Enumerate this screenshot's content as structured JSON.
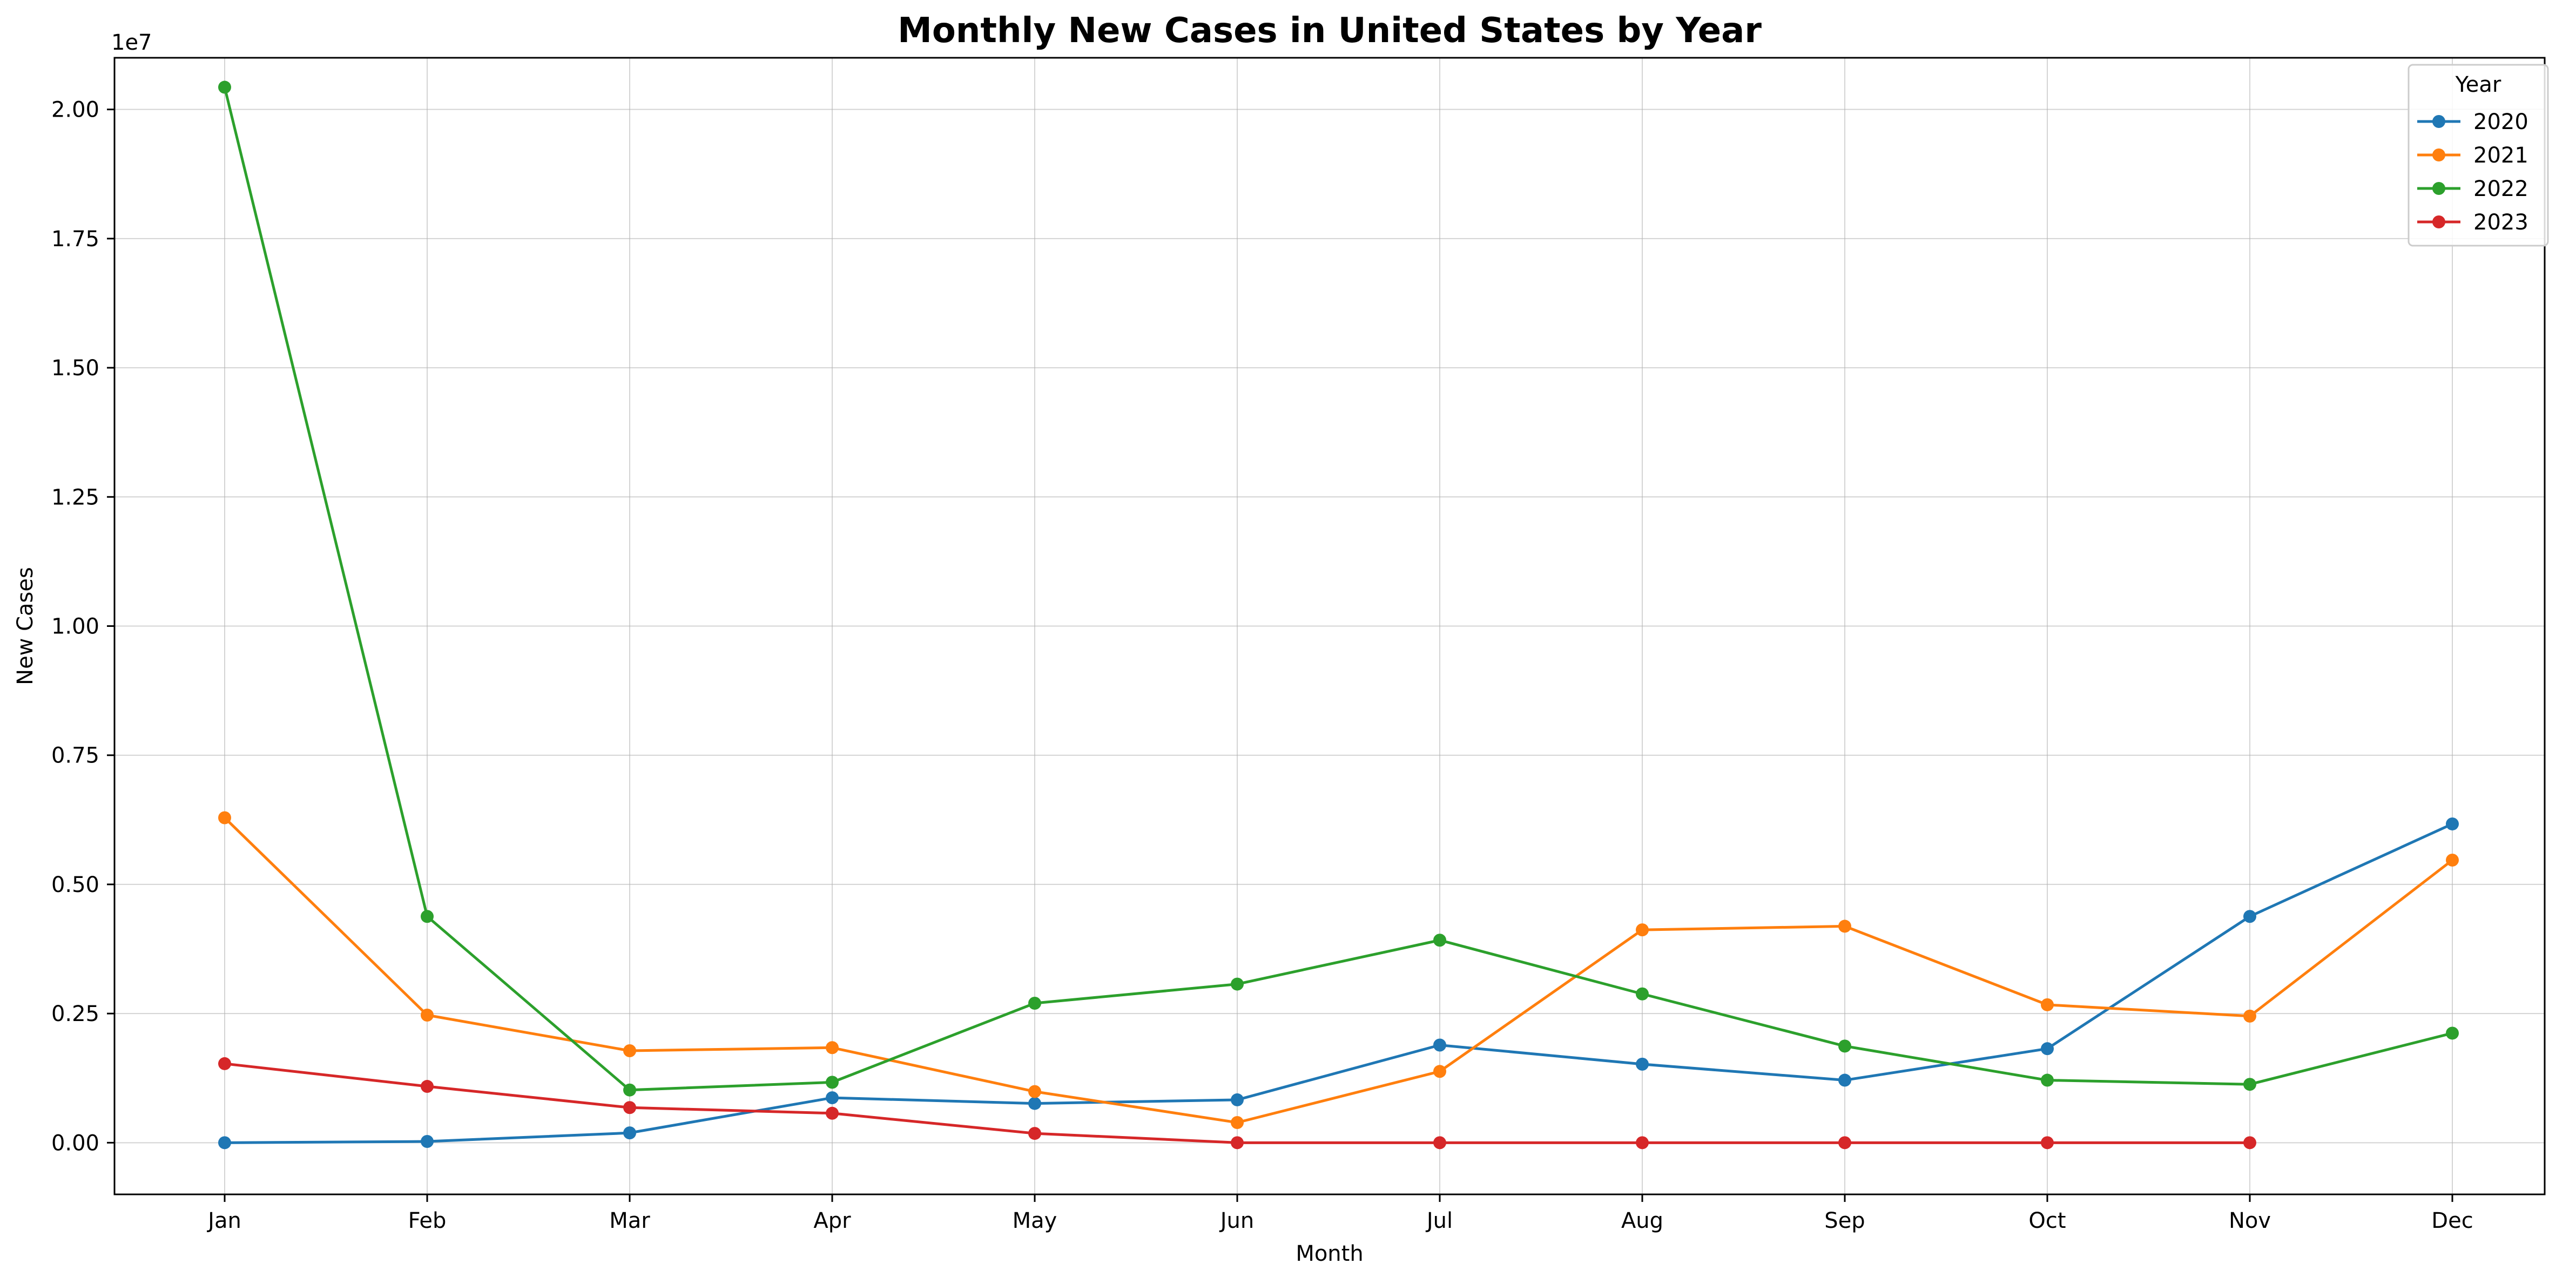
{
  "chart_data": {
    "type": "line",
    "title": "Monthly New Cases in United States by Year",
    "xlabel": "Month",
    "ylabel": "New Cases",
    "y_multiplier_label": "1e7",
    "categories": [
      "Jan",
      "Feb",
      "Mar",
      "Apr",
      "May",
      "Jun",
      "Jul",
      "Aug",
      "Sep",
      "Oct",
      "Nov",
      "Dec"
    ],
    "y_ticks": [
      "0.00",
      "0.25",
      "0.50",
      "0.75",
      "1.00",
      "1.25",
      "1.50",
      "1.75",
      "2.00"
    ],
    "ylim": [
      -1000000,
      21000000
    ],
    "grid": true,
    "legend": {
      "title": "Year",
      "placement": "top-right"
    },
    "series": [
      {
        "name": "2020",
        "color": "#1f77b4",
        "values": [
          7,
          24000,
          190000,
          870000,
          760000,
          830000,
          1890000,
          1520000,
          1210000,
          1820000,
          4380000,
          6170000
        ]
      },
      {
        "name": "2021",
        "color": "#ff7f0e",
        "values": [
          6290000,
          2470000,
          1780000,
          1840000,
          990000,
          390000,
          1380000,
          4120000,
          4190000,
          2670000,
          2450000,
          5470000
        ]
      },
      {
        "name": "2022",
        "color": "#2ca02c",
        "values": [
          20430000,
          4380000,
          1020000,
          1170000,
          2700000,
          3070000,
          3920000,
          2880000,
          1870000,
          1210000,
          1130000,
          2120000
        ]
      },
      {
        "name": "2023",
        "color": "#d62728",
        "values": [
          1530000,
          1090000,
          680000,
          570000,
          180000,
          0,
          0,
          0,
          0,
          0,
          0,
          null
        ]
      }
    ]
  }
}
